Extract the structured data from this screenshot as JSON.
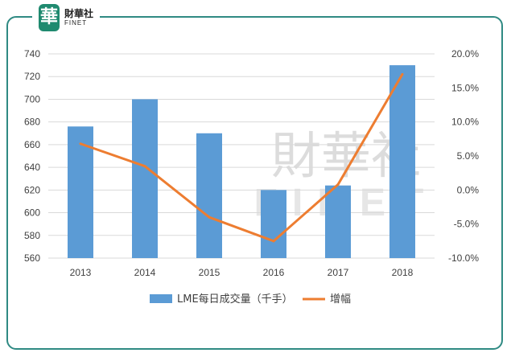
{
  "brand": {
    "logo_glyph": "華",
    "name_cn": "財華社",
    "name_en": "FINET",
    "watermark_cn": "財華社",
    "watermark_en": "FINET",
    "frame_color": "#2f8a83",
    "logo_color": "#1f8a6f"
  },
  "chart_data": {
    "type": "bar+line",
    "categories": [
      "2013",
      "2014",
      "2015",
      "2016",
      "2017",
      "2018"
    ],
    "series": [
      {
        "name": "LME每日成交量（千手）",
        "type": "bar",
        "axis": "left",
        "color": "#5b9bd5",
        "values": [
          676,
          700,
          670,
          620,
          624,
          730
        ]
      },
      {
        "name": "增幅",
        "type": "line",
        "axis": "right",
        "color": "#ed7d31",
        "values": [
          6.8,
          3.5,
          -4.0,
          -7.5,
          0.8,
          17.0
        ]
      }
    ],
    "y_left": {
      "min": 560,
      "max": 740,
      "step": 20,
      "ticks": [
        "560",
        "580",
        "600",
        "620",
        "640",
        "660",
        "680",
        "700",
        "720",
        "740"
      ]
    },
    "y_right": {
      "min": -10,
      "max": 20,
      "step": 5,
      "ticks": [
        "-10.0%",
        "-5.0%",
        "0.0%",
        "5.0%",
        "10.0%",
        "15.0%",
        "20.0%"
      ]
    },
    "grid": true,
    "legend_position": "bottom"
  }
}
